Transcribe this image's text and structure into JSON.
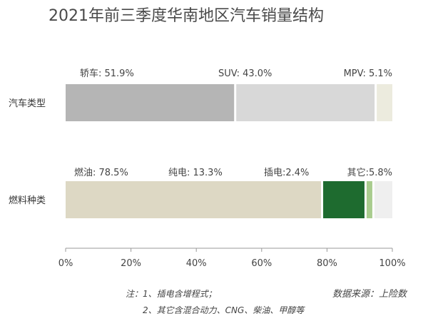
{
  "chart_data": {
    "type": "bar",
    "orientation": "horizontal",
    "stacked": true,
    "title": "2021年前三季度华南地区汽车销量结构",
    "categories": [
      "汽车类型",
      "燃料种类"
    ],
    "rows": [
      {
        "category": "汽车类型",
        "segments": [
          {
            "name": "轿车",
            "value": 51.9,
            "label": "轿车: 51.9%",
            "color": "#b5b5b5"
          },
          {
            "name": "SUV",
            "value": 43.0,
            "label": "SUV: 43.0%",
            "color": "#d8d8d8"
          },
          {
            "name": "MPV",
            "value": 5.1,
            "label": "MPV: 5.1%",
            "color": "#ecebde"
          }
        ]
      },
      {
        "category": "燃料种类",
        "segments": [
          {
            "name": "燃油",
            "value": 78.5,
            "label": "燃油: 78.5%",
            "color": "#ddd8c4"
          },
          {
            "name": "纯电",
            "value": 13.3,
            "label": "纯电: 13.3%",
            "color": "#1e6b2f"
          },
          {
            "name": "插电",
            "value": 2.4,
            "label": "插电:2.4%",
            "color": "#a9cc8e"
          },
          {
            "name": "其它",
            "value": 5.8,
            "label": "其它:5.8%",
            "color": "#efefef"
          }
        ]
      }
    ],
    "xlim": [
      0,
      100
    ],
    "xticks": [
      "0%",
      "20%",
      "40%",
      "60%",
      "80%",
      "100%"
    ],
    "grid": false,
    "legend": "none"
  },
  "notes": [
    "注：1、插电含增程式；",
    "2、其它含混合动力、CNG、柴油、甲醇等"
  ],
  "source": "数据来源：上险数"
}
